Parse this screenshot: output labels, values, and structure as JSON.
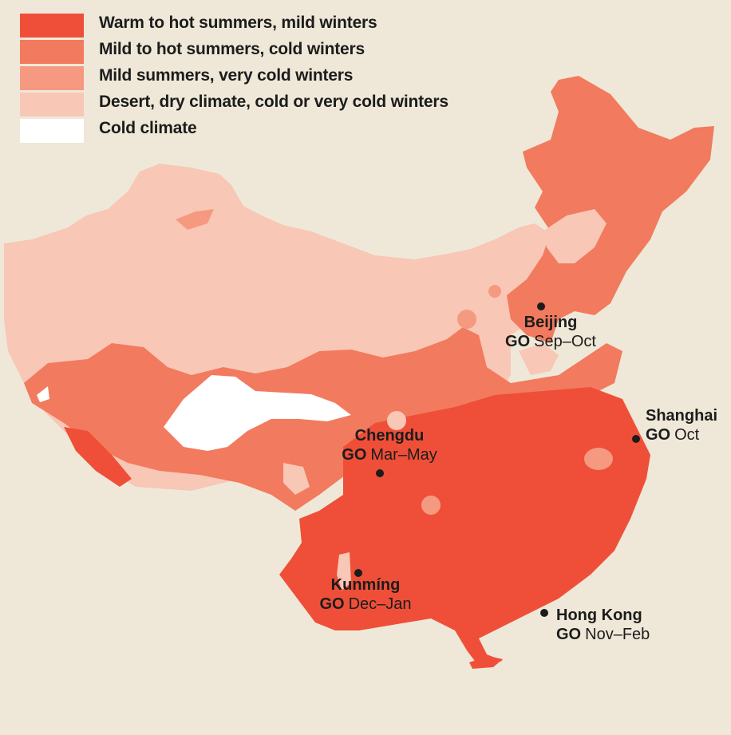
{
  "colors": {
    "background": "#EFE8D8",
    "warm_hot_summers_mild_winters": "#EF4F38",
    "mild_hot_summers_cold_winters": "#F27A5E",
    "mild_summers_very_cold_winters": "#F59A80",
    "desert_dry_climate": "#F8C7B5",
    "cold_climate": "#FFFFFF"
  },
  "legend": [
    {
      "label": "Warm to hot summers, mild winters",
      "color": "#EF4F38"
    },
    {
      "label": "Mild to hot summers, cold winters",
      "color": "#F27A5E"
    },
    {
      "label": "Mild summers, very cold winters",
      "color": "#F59A80"
    },
    {
      "label": "Desert, dry climate, cold or very cold winters",
      "color": "#F8C7B5"
    },
    {
      "label": "Cold climate",
      "color": "#FFFFFF"
    }
  ],
  "cities": {
    "beijing": {
      "name": "Beijing",
      "go": "GO",
      "months": "Sep–Oct"
    },
    "shanghai": {
      "name": "Shanghai",
      "go": "GO",
      "months": "Oct"
    },
    "chengdu": {
      "name": "Chengdu",
      "go": "GO",
      "months": "Mar–May"
    },
    "kunming": {
      "name": "Kunmíng",
      "go": "GO",
      "months": "Dec–Jan"
    },
    "hong_kong": {
      "name": "Hong Kong",
      "go": "GO",
      "months": "Nov–Feb"
    }
  }
}
